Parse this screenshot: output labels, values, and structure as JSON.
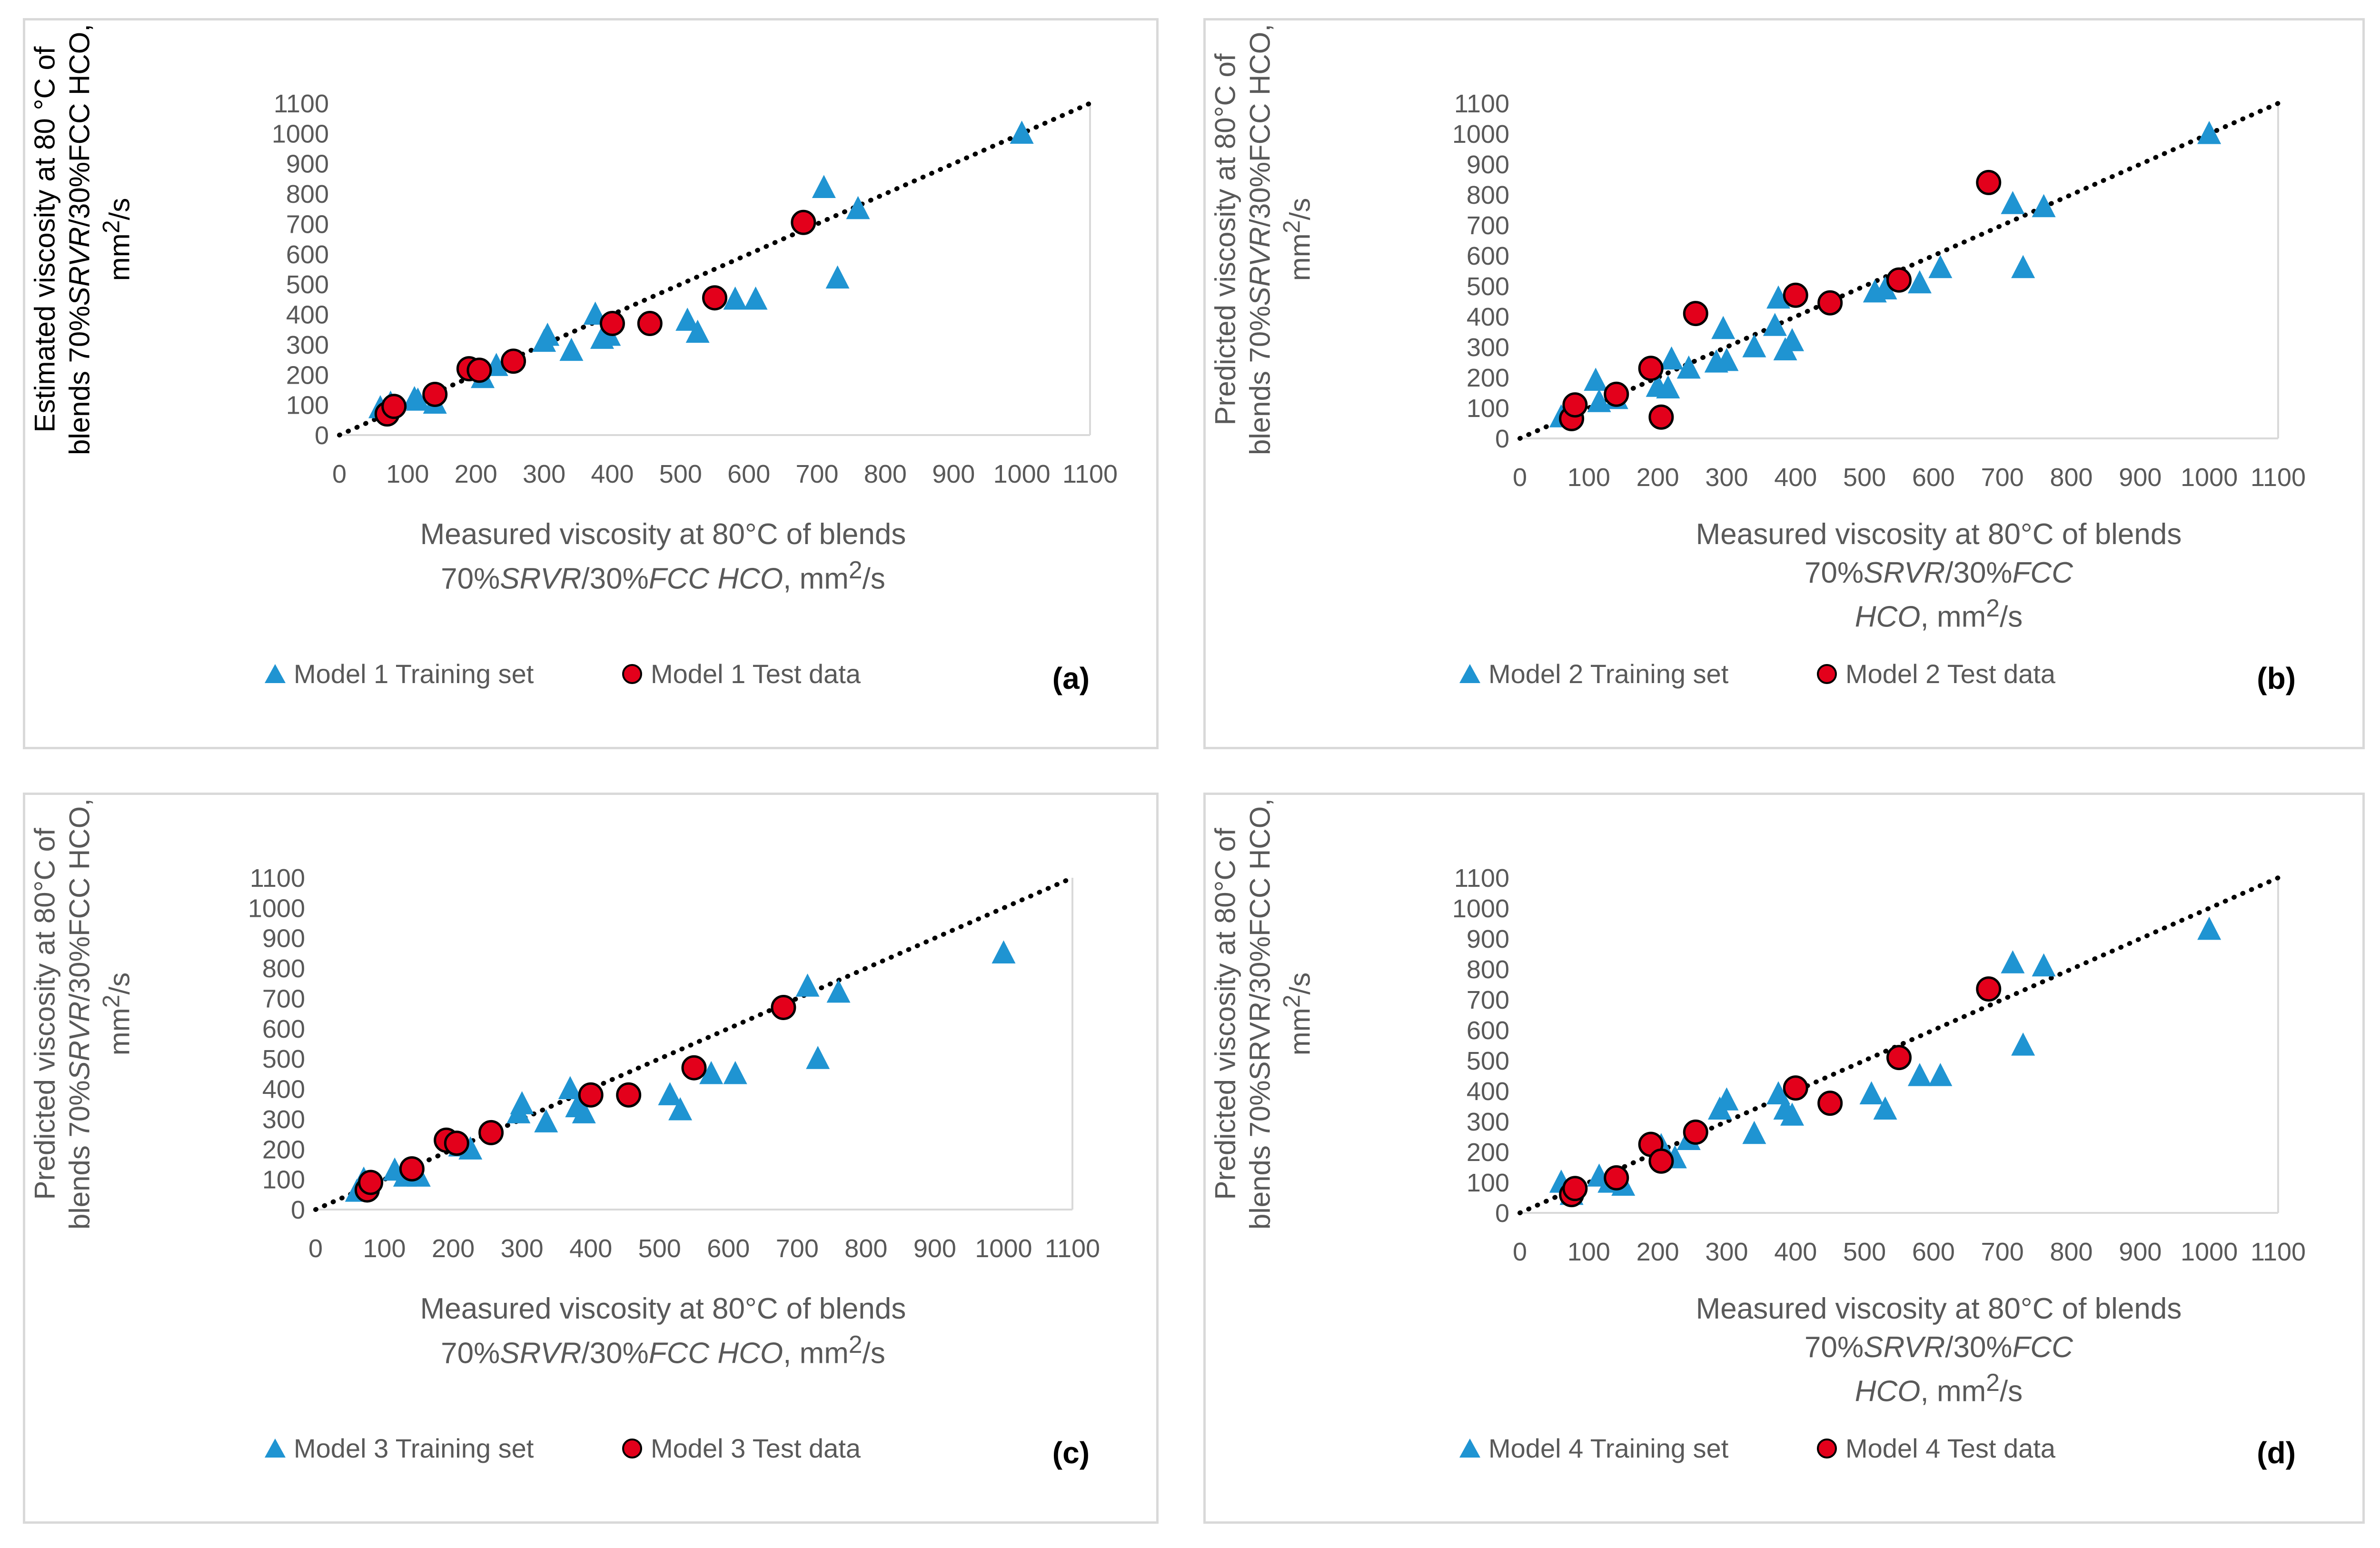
{
  "chart_data": [
    {
      "type": "scatter",
      "panel_label": "(a)",
      "ylabel_lines": [
        "Estimated viscosity at 80 °C of",
        "blends 70%<i>SRVR</i>/30%FCC HCO,",
        "mm<sup>2</sup>/s"
      ],
      "xlabel_lines": [
        "Measured viscosity at 80°C of blends",
        "70%<i>SRVR</i>/30%<i>FCC HCO</i>, mm<sup>2</sup>/s"
      ],
      "xlim": [
        0,
        1100
      ],
      "ylim": [
        0,
        1100
      ],
      "ticks": [
        0,
        100,
        200,
        300,
        400,
        500,
        600,
        700,
        800,
        900,
        1000,
        1100
      ],
      "reference_line": [
        [
          0,
          0
        ],
        [
          1100,
          1100
        ]
      ],
      "series": [
        {
          "name": "Model 1 Training set",
          "marker": "triangle",
          "color": "#1f94d2",
          "x": [
            60,
            75,
            110,
            115,
            140,
            210,
            230,
            300,
            305,
            340,
            375,
            385,
            395,
            510,
            525,
            580,
            610,
            710,
            730,
            760,
            1000
          ],
          "y": [
            90,
            105,
            120,
            115,
            105,
            190,
            230,
            310,
            330,
            280,
            400,
            320,
            330,
            380,
            340,
            450,
            450,
            820,
            520,
            750,
            1000
          ]
        },
        {
          "name": "Model 1 Test data",
          "marker": "circle",
          "color": "#e3001b",
          "x": [
            70,
            80,
            140,
            190,
            205,
            255,
            400,
            455,
            550,
            680
          ],
          "y": [
            70,
            95,
            135,
            220,
            215,
            245,
            370,
            370,
            455,
            705
          ]
        }
      ]
    },
    {
      "type": "scatter",
      "panel_label": "(b)",
      "ylabel_lines": [
        "Predicted viscosity at 80°C of",
        "blends 70%<i>SRVR</i>/30%FCC HCO,",
        "mm<sup>2</sup>/s"
      ],
      "xlabel_lines": [
        "Measured viscosity at 80°C of blends 70%<i>SRVR</i>/30%<i>FCC</i>",
        "<i>HCO</i>, mm<sup>2</sup>/s"
      ],
      "xlim": [
        0,
        1100
      ],
      "ylim": [
        0,
        1100
      ],
      "ticks": [
        0,
        100,
        200,
        300,
        400,
        500,
        600,
        700,
        800,
        900,
        1000,
        1100
      ],
      "reference_line": [
        [
          0,
          0
        ],
        [
          1100,
          1100
        ]
      ],
      "series": [
        {
          "name": "Model 2 Training set",
          "marker": "triangle",
          "color": "#1f94d2",
          "x": [
            60,
            75,
            110,
            115,
            140,
            200,
            215,
            220,
            245,
            285,
            295,
            300,
            340,
            370,
            375,
            385,
            395,
            515,
            530,
            580,
            610,
            715,
            730,
            760,
            1000
          ],
          "y": [
            70,
            100,
            190,
            120,
            130,
            170,
            165,
            260,
            230,
            250,
            360,
            255,
            300,
            370,
            460,
            290,
            320,
            480,
            490,
            510,
            560,
            770,
            560,
            760,
            1000
          ]
        },
        {
          "name": "Model 2 Test data",
          "marker": "circle",
          "color": "#e3001b",
          "x": [
            75,
            80,
            140,
            190,
            205,
            255,
            400,
            450,
            550,
            680
          ],
          "y": [
            65,
            110,
            145,
            230,
            70,
            410,
            470,
            445,
            520,
            840
          ]
        }
      ]
    },
    {
      "type": "scatter",
      "panel_label": "(c)",
      "ylabel_lines": [
        "Predicted viscosity at 80°C of",
        "blends 70%<i>SRVR</i>/30%FCC HCO,",
        "mm<sup>2</sup>/s"
      ],
      "xlabel_lines": [
        "Measured viscosity at 80°C of blends",
        "70%<i>SRVR</i>/30%<i>FCC HCO</i>, mm<sup>2</sup>/s"
      ],
      "xlim": [
        0,
        1100
      ],
      "ylim": [
        0,
        1100
      ],
      "ticks": [
        0,
        100,
        200,
        300,
        400,
        500,
        600,
        700,
        800,
        900,
        1000,
        1100
      ],
      "reference_line": [
        [
          0,
          0
        ],
        [
          1100,
          1100
        ]
      ],
      "series": [
        {
          "name": "Model 3 Training set",
          "marker": "triangle",
          "color": "#1f94d2",
          "x": [
            60,
            70,
            115,
            130,
            150,
            210,
            225,
            295,
            300,
            335,
            370,
            380,
            390,
            515,
            530,
            575,
            610,
            715,
            730,
            760,
            1000
          ],
          "y": [
            60,
            100,
            130,
            110,
            110,
            210,
            200,
            320,
            350,
            290,
            400,
            340,
            320,
            380,
            330,
            450,
            450,
            740,
            500,
            720,
            850
          ]
        },
        {
          "name": "Model 3 Test data",
          "marker": "circle",
          "color": "#e3001b",
          "x": [
            75,
            80,
            140,
            190,
            205,
            255,
            400,
            455,
            550,
            680
          ],
          "y": [
            65,
            90,
            135,
            230,
            220,
            255,
            380,
            380,
            470,
            670
          ]
        }
      ]
    },
    {
      "type": "scatter",
      "panel_label": "(d)",
      "ylabel_lines": [
        "Predicted viscosity at 80°C of",
        "blends 70%SRVR/30%FCC HCO,",
        "mm<sup>2</sup>/s"
      ],
      "xlabel_lines": [
        "Measured viscosity at 80°C of blends 70%<i>SRVR</i>/30%<i>FCC</i>",
        "<i>HCO</i>, mm<sup>2</sup>/s"
      ],
      "xlim": [
        0,
        1100
      ],
      "ylim": [
        0,
        1100
      ],
      "ticks": [
        0,
        100,
        200,
        300,
        400,
        500,
        600,
        700,
        800,
        900,
        1000,
        1100
      ],
      "reference_line": [
        [
          0,
          0
        ],
        [
          1100,
          1100
        ]
      ],
      "series": [
        {
          "name": "Model 4 Training set",
          "marker": "triangle",
          "color": "#1f94d2",
          "x": [
            60,
            75,
            115,
            130,
            150,
            205,
            225,
            245,
            290,
            300,
            340,
            375,
            385,
            395,
            510,
            530,
            580,
            610,
            715,
            730,
            760,
            1000
          ],
          "y": [
            100,
            60,
            120,
            100,
            90,
            220,
            180,
            240,
            340,
            370,
            260,
            390,
            340,
            320,
            390,
            340,
            450,
            450,
            820,
            550,
            810,
            930
          ]
        },
        {
          "name": "Model 4 Test data",
          "marker": "circle",
          "color": "#e3001b",
          "x": [
            75,
            80,
            140,
            190,
            205,
            255,
            400,
            450,
            550,
            680
          ],
          "y": [
            60,
            80,
            115,
            225,
            170,
            265,
            410,
            360,
            510,
            735
          ]
        }
      ]
    }
  ]
}
